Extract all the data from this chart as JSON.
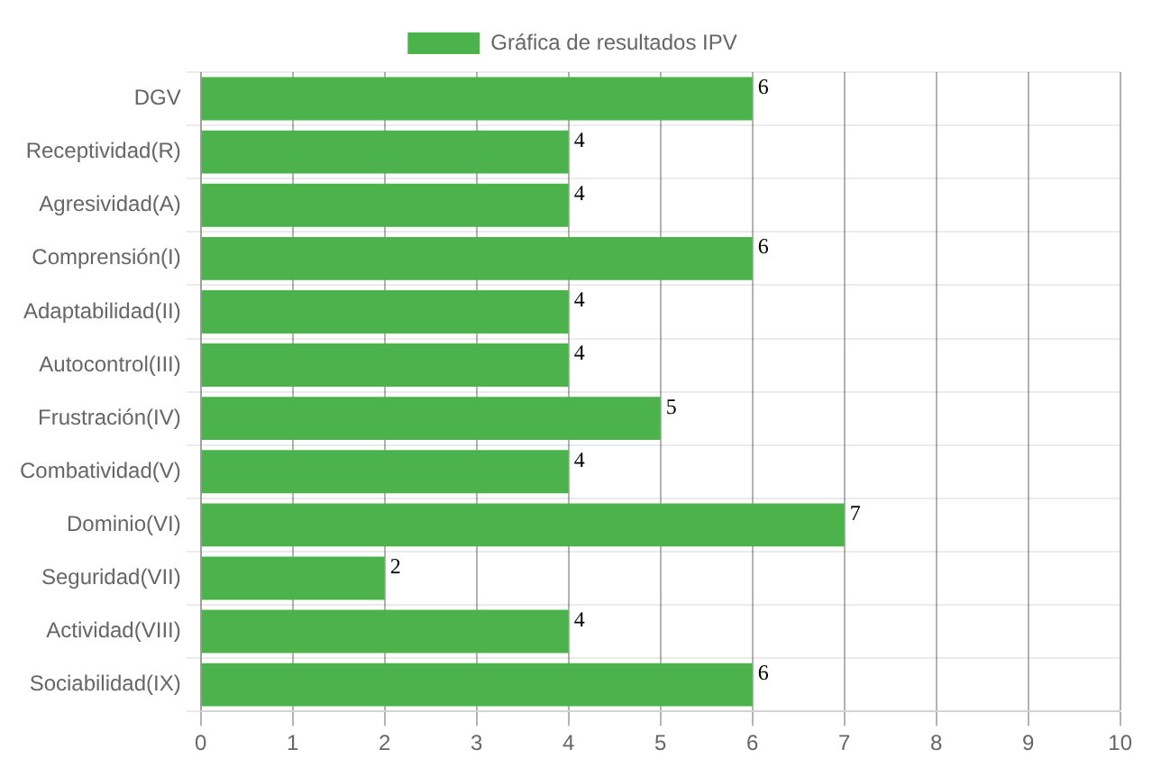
{
  "chart_data": {
    "type": "bar",
    "orientation": "horizontal",
    "categories": [
      "DGV",
      "Receptividad(R)",
      "Agresividad(A)",
      "Comprensión(I)",
      "Adaptabilidad(II)",
      "Autocontrol(III)",
      "Frustración(IV)",
      "Combatividad(V)",
      "Dominio(VI)",
      "Seguridad(VII)",
      "Actividad(VIII)",
      "Sociabilidad(IX)"
    ],
    "series": [
      {
        "name": "Gráfica de resultados IPV",
        "color": "#4cb34c",
        "values": [
          6,
          4,
          4,
          6,
          4,
          4,
          5,
          4,
          7,
          2,
          4,
          6
        ]
      }
    ],
    "xlim": [
      0,
      10
    ],
    "xticks": [
      0,
      1,
      2,
      3,
      4,
      5,
      6,
      7,
      8,
      9,
      10
    ],
    "grid": true,
    "legend": "top",
    "data_labels": true
  }
}
